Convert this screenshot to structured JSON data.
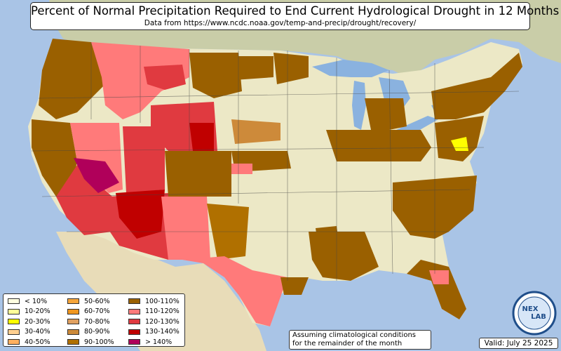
{
  "title": "Percent of Normal Precipitation Required to End Current Hydrological Drought in 12 Months",
  "subtitle": "Data from https://www.ncdc.noaa.gov/temp-and-precip/drought/recovery/",
  "legend": {
    "items": [
      {
        "label": "< 10%",
        "color": "#ffffe0"
      },
      {
        "label": "10-20%",
        "color": "#ffff99"
      },
      {
        "label": "20-30%",
        "color": "#ffff00"
      },
      {
        "label": "30-40%",
        "color": "#ffd090"
      },
      {
        "label": "40-50%",
        "color": "#ffb060"
      },
      {
        "label": "50-60%",
        "color": "#f5a53a"
      },
      {
        "label": "60-70%",
        "color": "#f0961e"
      },
      {
        "label": "70-80%",
        "color": "#e0a060"
      },
      {
        "label": "80-90%",
        "color": "#cd8a3a"
      },
      {
        "label": "90-100%",
        "color": "#b07000"
      },
      {
        "label": "100-110%",
        "color": "#9a6000"
      },
      {
        "label": "110-120%",
        "color": "#ff7a7a"
      },
      {
        "label": "120-130%",
        "color": "#e03a40"
      },
      {
        "label": "130-140%",
        "color": "#c00000"
      },
      {
        "label": "> 140%",
        "color": "#b0005a"
      }
    ]
  },
  "note": {
    "line1": "Assuming climatological conditions",
    "line2": "for the remainder of the month"
  },
  "valid": "Valid: July 25 2025",
  "logo": {
    "line1": "NEX",
    "line2": "LAB"
  },
  "colors": {
    "ocean": "#a9c4e6",
    "land": "#ece8c6",
    "lake": "#8ab2df",
    "canada": "#c9cda8",
    "mexico": "#e8dcb8"
  }
}
